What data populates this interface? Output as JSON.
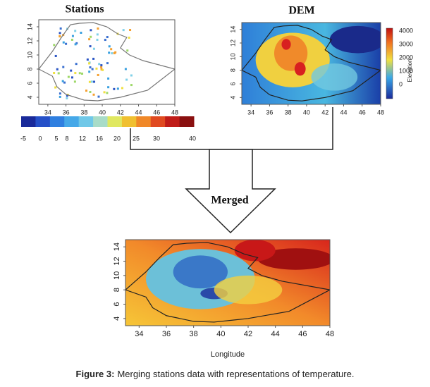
{
  "stations": {
    "title": "Stations",
    "xticks": [
      34,
      36,
      38,
      40,
      42,
      44,
      46,
      48
    ],
    "yticks": [
      14,
      12,
      10,
      8,
      6,
      4
    ],
    "colorbar_ticks": [
      -5,
      0,
      5,
      8,
      12,
      16,
      20,
      25,
      30,
      40
    ]
  },
  "dem": {
    "title": "DEM",
    "xticks": [
      34,
      36,
      38,
      40,
      42,
      44,
      46,
      48
    ],
    "yticks": [
      14,
      12,
      10,
      8,
      6,
      4
    ],
    "colorbar_ticks": [
      4000,
      3000,
      2000,
      1000,
      0
    ],
    "colorbar_label": "Elevation"
  },
  "arrow": {
    "label": "Merged"
  },
  "merged": {
    "xticks": [
      34,
      36,
      38,
      40,
      42,
      44,
      46,
      48
    ],
    "yticks": [
      14,
      12,
      10,
      8,
      6,
      4
    ],
    "xlabel": "Longitude"
  },
  "caption": {
    "label": "Figure 3:",
    "text": "Merging stations data with representations of temperature."
  }
}
